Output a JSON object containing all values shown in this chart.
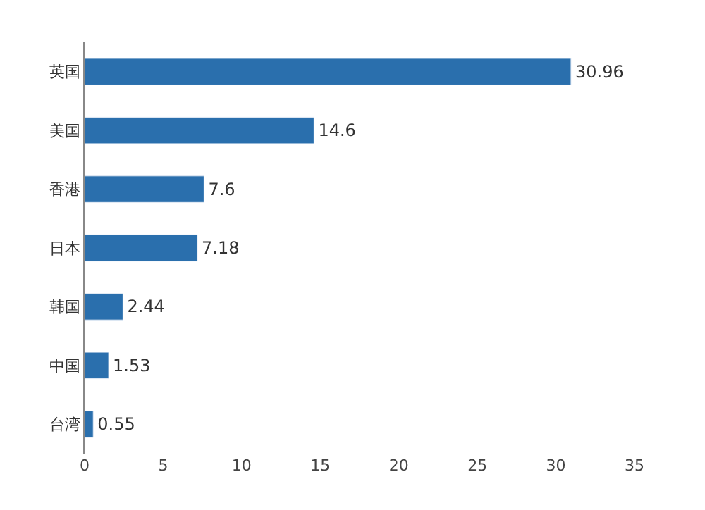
{
  "chart_data": {
    "type": "bar",
    "orientation": "horizontal",
    "categories": [
      "英国",
      "美国",
      "香港",
      "日本",
      "韩国",
      "中国",
      "台湾"
    ],
    "values": [
      30.96,
      14.6,
      7.6,
      7.18,
      2.44,
      1.53,
      0.55
    ],
    "color": "#2a6fad",
    "xlim": [
      0,
      35
    ],
    "xticks": [
      0,
      5,
      10,
      15,
      20,
      25,
      30,
      35
    ],
    "data_labels": true
  }
}
